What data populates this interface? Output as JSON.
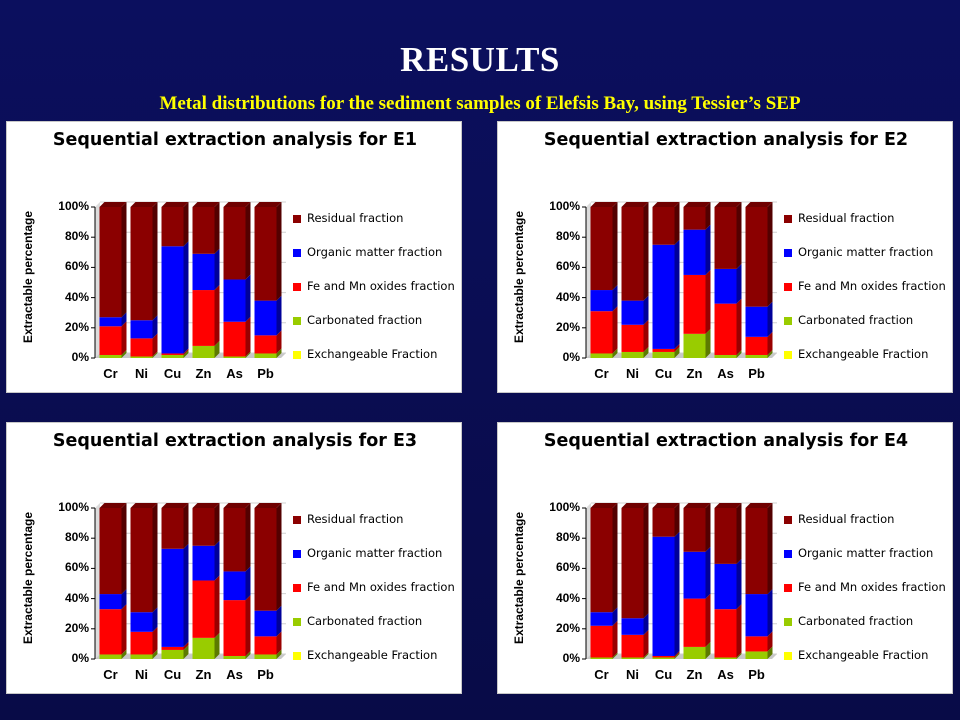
{
  "slide": {
    "title": "RESULTS",
    "subtitle": "Metal distributions for the sediment samples of Elefsis Bay, using Tessier’s SEP"
  },
  "colors": {
    "residual": "#8b0000",
    "organic": "#0000ff",
    "oxides": "#ff0000",
    "carbonated": "#99cc00",
    "exchangeable": "#ffff00",
    "background": "#0a0d52"
  },
  "chart_data": [
    {
      "type": "bar",
      "stacked": true,
      "title": "Sequential extraction analysis for E1",
      "ylabel": "Extractable percentage",
      "yticks": [
        "0%",
        "20%",
        "40%",
        "60%",
        "80%",
        "100%"
      ],
      "ylim": [
        0,
        100
      ],
      "legend_position": "right",
      "categories": [
        "Cr",
        "Ni",
        "Cu",
        "Zn",
        "As",
        "Pb"
      ],
      "series": [
        {
          "name": "Exchangeable Fraction",
          "values": [
            0,
            0,
            0,
            0,
            0,
            0
          ]
        },
        {
          "name": "Carbonated fraction",
          "values": [
            2,
            1,
            2,
            8,
            1,
            3
          ]
        },
        {
          "name": "Fe and Mn oxides fraction",
          "values": [
            19,
            12,
            1,
            37,
            23,
            12
          ]
        },
        {
          "name": "Organic matter fraction",
          "values": [
            6,
            12,
            71,
            24,
            28,
            23
          ]
        },
        {
          "name": "Residual fraction",
          "values": [
            73,
            75,
            26,
            31,
            48,
            62
          ]
        }
      ],
      "legend_labels": [
        "Residual fraction",
        "Organic matter fraction",
        "Fe and Mn oxides fraction",
        "Carbonated fraction",
        "Exchangeable Fraction"
      ]
    },
    {
      "type": "bar",
      "stacked": true,
      "title": "Sequential extraction analysis for E2",
      "ylabel": "Extractable percentage",
      "yticks": [
        "0%",
        "20%",
        "40%",
        "60%",
        "80%",
        "100%"
      ],
      "ylim": [
        0,
        100
      ],
      "legend_position": "right",
      "categories": [
        "Cr",
        "Ni",
        "Cu",
        "Zn",
        "As",
        "Pb"
      ],
      "series": [
        {
          "name": "Exchangeable Fraction",
          "values": [
            0,
            0,
            0,
            0,
            0,
            0
          ]
        },
        {
          "name": "Carbonated fraction",
          "values": [
            3,
            4,
            4,
            16,
            2,
            2
          ]
        },
        {
          "name": "Fe and Mn oxides fraction",
          "values": [
            28,
            18,
            2,
            39,
            34,
            12
          ]
        },
        {
          "name": "Organic matter fraction",
          "values": [
            14,
            16,
            69,
            30,
            23,
            20
          ]
        },
        {
          "name": "Residual fraction",
          "values": [
            55,
            62,
            25,
            15,
            41,
            66
          ]
        }
      ],
      "legend_labels": [
        "Residual fraction",
        "Organic matter fraction",
        "Fe and Mn oxides fraction",
        "Carbonated fraction",
        "Exchangeable Fraction"
      ]
    },
    {
      "type": "bar",
      "stacked": true,
      "title": "Sequential extraction analysis for E3",
      "ylabel": "Extractable percentage",
      "yticks": [
        "0%",
        "20%",
        "40%",
        "60%",
        "80%",
        "100%"
      ],
      "ylim": [
        0,
        100
      ],
      "legend_position": "right",
      "categories": [
        "Cr",
        "Ni",
        "Cu",
        "Zn",
        "As",
        "Pb"
      ],
      "series": [
        {
          "name": "Exchangeable Fraction",
          "values": [
            0,
            0,
            0,
            0,
            0,
            0
          ]
        },
        {
          "name": "Carbonated fraction",
          "values": [
            3,
            3,
            6,
            14,
            2,
            3
          ]
        },
        {
          "name": "Fe and Mn oxides fraction",
          "values": [
            30,
            15,
            2,
            38,
            37,
            12
          ]
        },
        {
          "name": "Organic matter fraction",
          "values": [
            10,
            13,
            65,
            23,
            19,
            17
          ]
        },
        {
          "name": "Residual fraction",
          "values": [
            57,
            69,
            27,
            25,
            42,
            68
          ]
        }
      ],
      "legend_labels": [
        "Residual fraction",
        "Organic matter fraction",
        " Fe and Mn oxides fraction",
        "Carbonated fraction",
        "Exchangeable Fraction"
      ]
    },
    {
      "type": "bar",
      "stacked": true,
      "title": "Sequential extraction analysis for E4",
      "ylabel": "Extractable percentage",
      "yticks": [
        "0%",
        "20%",
        "40%",
        "60%",
        "80%",
        "100%"
      ],
      "ylim": [
        0,
        100
      ],
      "legend_position": "right",
      "categories": [
        "Cr",
        "Ni",
        "Cu",
        "Zn",
        "As",
        "Pb"
      ],
      "series": [
        {
          "name": "Exchangeable Fraction",
          "values": [
            0,
            0,
            0,
            0,
            0,
            0
          ]
        },
        {
          "name": "Carbonated fraction",
          "values": [
            1,
            1,
            1,
            8,
            1,
            5
          ]
        },
        {
          "name": "Fe and Mn oxides fraction",
          "values": [
            21,
            15,
            1,
            32,
            32,
            10
          ]
        },
        {
          "name": "Organic matter fraction",
          "values": [
            9,
            11,
            79,
            31,
            30,
            28
          ]
        },
        {
          "name": "Residual fraction",
          "values": [
            69,
            73,
            19,
            29,
            37,
            57
          ]
        }
      ],
      "legend_labels": [
        "Residual fraction",
        "Organic matter fraction",
        "Fe and Mn oxides fraction",
        "Carbonated fraction",
        "Exchangeable Fraction"
      ]
    }
  ]
}
